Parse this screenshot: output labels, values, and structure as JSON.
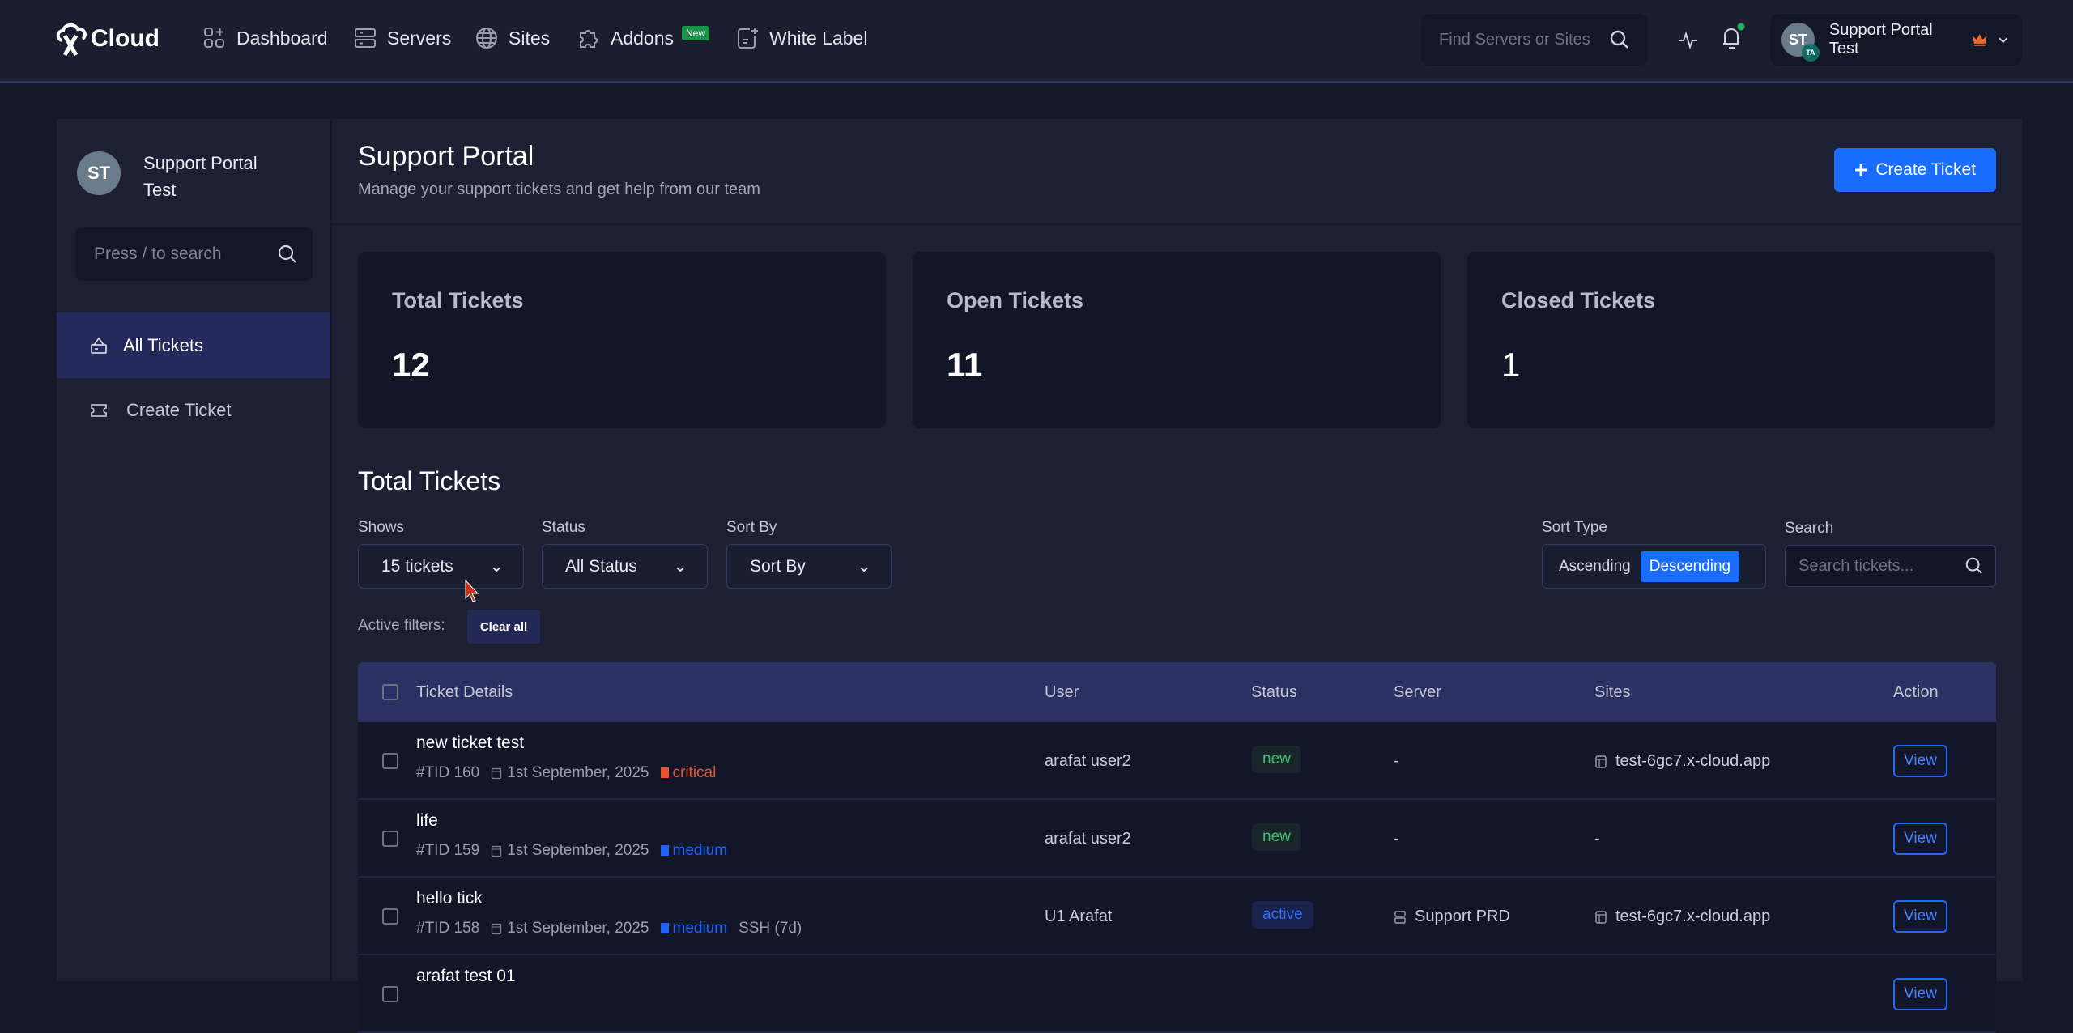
{
  "brand": {
    "name": "Cloud"
  },
  "nav": [
    {
      "label": "Dashboard",
      "icon": "dashboard-icon"
    },
    {
      "label": "Servers",
      "icon": "server-icon"
    },
    {
      "label": "Sites",
      "icon": "globe-icon"
    },
    {
      "label": "Addons",
      "icon": "puzzle-icon",
      "badge": "New"
    },
    {
      "label": "White Label",
      "icon": "whitelabel-icon"
    }
  ],
  "global_search": {
    "placeholder": "Find Servers or Sites"
  },
  "profile": {
    "initials": "ST",
    "sub_initials": "TA",
    "name": "Support Portal Test"
  },
  "sidebar": {
    "initials": "ST",
    "name": "Support Portal Test",
    "search_placeholder": "Press / to search",
    "items": [
      {
        "label": "All Tickets",
        "active": true
      },
      {
        "label": "Create Ticket",
        "active": false
      }
    ]
  },
  "header": {
    "title": "Support Portal",
    "subtitle": "Manage your support tickets and get help from our team",
    "create_button": "Create Ticket"
  },
  "stats": [
    {
      "label": "Total Tickets",
      "value": "12"
    },
    {
      "label": "Open Tickets",
      "value": "11"
    },
    {
      "label": "Closed Tickets",
      "value": "1"
    }
  ],
  "list": {
    "title": "Total Tickets",
    "shows_label": "Shows",
    "shows_value": "15 tickets",
    "status_label": "Status",
    "status_value": "All Status",
    "sortby_label": "Sort By",
    "sortby_value": "Sort By",
    "sorttype_label": "Sort Type",
    "ascending": "Ascending",
    "descending": "Descending",
    "sort_selected": "Descending",
    "search_label": "Search",
    "search_placeholder": "Search tickets...",
    "active_filters": "Active filters:",
    "clear_all": "Clear all"
  },
  "table": {
    "headers": [
      "Ticket Details",
      "User",
      "Status",
      "Server",
      "Sites",
      "Action"
    ],
    "rows": [
      {
        "title": "new ticket test",
        "tid": "#TID 160",
        "date": "1st September, 2025",
        "priority": "critical",
        "extra": "",
        "user": "arafat user2",
        "status": "new",
        "server": "-",
        "site": "test-6gc7.x-cloud.app",
        "action": "View"
      },
      {
        "title": "life",
        "tid": "#TID 159",
        "date": "1st September, 2025",
        "priority": "medium",
        "extra": "",
        "user": "arafat user2",
        "status": "new",
        "server": "-",
        "site": "-",
        "action": "View"
      },
      {
        "title": "hello tick",
        "tid": "#TID 158",
        "date": "1st September, 2025",
        "priority": "medium",
        "extra": "SSH (7d)",
        "user": "U1 Arafat",
        "status": "active",
        "server": "Support PRD",
        "site": "test-6gc7.x-cloud.app",
        "action": "View"
      },
      {
        "title": "arafat test 01",
        "tid": "",
        "date": "",
        "priority": "",
        "extra": "",
        "user": "",
        "status": "",
        "server": "",
        "site": "",
        "action": "View"
      }
    ]
  },
  "colors": {
    "accent": "#1a6dff",
    "critical": "#e8532b",
    "medium": "#1f63ff",
    "new": "#3cc46e",
    "active": "#2f6df6"
  }
}
